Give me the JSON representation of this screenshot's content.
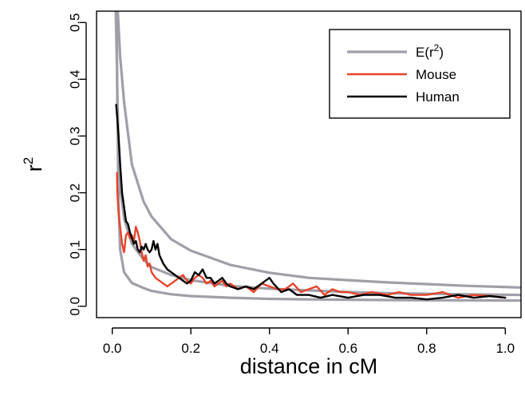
{
  "chart_data": {
    "type": "line",
    "xlabel": "distance in cM",
    "ylabel": "r",
    "ylabel_superscript": "2",
    "xlim": [
      -0.04,
      1.04
    ],
    "ylim": [
      -0.02,
      0.52
    ],
    "x_ticks": [
      "0.0",
      "0.2",
      "0.4",
      "0.6",
      "0.8",
      "1.0"
    ],
    "x_tick_values": [
      0.0,
      0.2,
      0.4,
      0.6,
      0.8,
      1.0
    ],
    "y_ticks": [
      "0.0",
      "0.1",
      "0.2",
      "0.3",
      "0.4",
      "0.5"
    ],
    "y_tick_values": [
      0.0,
      0.1,
      0.2,
      0.3,
      0.4,
      0.5
    ],
    "legend": {
      "placement": "top-right",
      "entries": [
        {
          "label": "E(r",
          "sup": "2",
          "suffix": ")",
          "color": "#a09fa8"
        },
        {
          "label": "Mouse",
          "sup": "",
          "suffix": "",
          "color": "#e8432a"
        },
        {
          "label": "Human",
          "sup": "",
          "suffix": "",
          "color": "#000000"
        }
      ]
    },
    "series": [
      {
        "name": "E(r2)",
        "color": "#a09fa8",
        "x": [
          0.014,
          0.02,
          0.03,
          0.05,
          0.08,
          0.1,
          0.15,
          0.2,
          0.3,
          0.4,
          0.5,
          0.6,
          0.7,
          0.8,
          0.9,
          1.04
        ],
        "y": [
          0.52,
          0.44,
          0.36,
          0.25,
          0.184,
          0.158,
          0.118,
          0.098,
          0.073,
          0.059,
          0.05,
          0.046,
          0.042,
          0.039,
          0.036,
          0.033
        ]
      },
      {
        "name": "E(r2)",
        "color": "#a09fa8",
        "x": [
          0.009,
          0.012,
          0.015,
          0.02,
          0.03,
          0.05,
          0.08,
          0.1,
          0.15,
          0.2,
          0.3,
          0.4,
          0.5,
          0.6,
          0.7,
          0.8,
          0.9,
          1.04
        ],
        "y": [
          0.52,
          0.42,
          0.3,
          0.21,
          0.155,
          0.11,
          0.082,
          0.069,
          0.055,
          0.046,
          0.036,
          0.031,
          0.028,
          0.025,
          0.023,
          0.022,
          0.021,
          0.02
        ]
      },
      {
        "name": "E(r2)",
        "color": "#a09fa8",
        "x": [
          0.011,
          0.013,
          0.016,
          0.02,
          0.03,
          0.05,
          0.08,
          0.1,
          0.15,
          0.2,
          0.3,
          0.4,
          0.5,
          0.6,
          0.7,
          0.8,
          0.9,
          1.04
        ],
        "y": [
          0.52,
          0.35,
          0.18,
          0.1,
          0.06,
          0.041,
          0.032,
          0.027,
          0.021,
          0.018,
          0.015,
          0.013,
          0.012,
          0.0115,
          0.011,
          0.0105,
          0.0105,
          0.01
        ]
      },
      {
        "name": "Mouse",
        "color": "#e8432a",
        "x": [
          0.012,
          0.013,
          0.016,
          0.02,
          0.025,
          0.03,
          0.035,
          0.04,
          0.045,
          0.05,
          0.055,
          0.06,
          0.065,
          0.07,
          0.075,
          0.08,
          0.085,
          0.09,
          0.095,
          0.1,
          0.11,
          0.12,
          0.13,
          0.14,
          0.15,
          0.16,
          0.17,
          0.18,
          0.19,
          0.2,
          0.21,
          0.22,
          0.23,
          0.24,
          0.25,
          0.26,
          0.27,
          0.28,
          0.29,
          0.3,
          0.32,
          0.34,
          0.36,
          0.38,
          0.4,
          0.42,
          0.44,
          0.46,
          0.48,
          0.5,
          0.52,
          0.54,
          0.56,
          0.58,
          0.6,
          0.63,
          0.66,
          0.7,
          0.73,
          0.76,
          0.8,
          0.84,
          0.88,
          0.92,
          0.96,
          1.0
        ],
        "y": [
          0.235,
          0.2,
          0.165,
          0.14,
          0.11,
          0.095,
          0.125,
          0.13,
          0.12,
          0.125,
          0.115,
          0.14,
          0.13,
          0.115,
          0.095,
          0.08,
          0.09,
          0.07,
          0.075,
          0.06,
          0.05,
          0.045,
          0.04,
          0.035,
          0.04,
          0.045,
          0.05,
          0.055,
          0.045,
          0.04,
          0.05,
          0.055,
          0.05,
          0.04,
          0.045,
          0.035,
          0.04,
          0.045,
          0.035,
          0.04,
          0.03,
          0.035,
          0.025,
          0.04,
          0.035,
          0.03,
          0.03,
          0.04,
          0.025,
          0.03,
          0.035,
          0.02,
          0.03,
          0.025,
          0.025,
          0.02,
          0.025,
          0.02,
          0.025,
          0.02,
          0.02,
          0.025,
          0.015,
          0.02,
          0.018,
          0.015
        ]
      },
      {
        "name": "Human",
        "color": "#000000",
        "x": [
          0.01,
          0.013,
          0.016,
          0.02,
          0.025,
          0.03,
          0.035,
          0.04,
          0.045,
          0.05,
          0.055,
          0.06,
          0.065,
          0.07,
          0.075,
          0.08,
          0.085,
          0.09,
          0.095,
          0.1,
          0.105,
          0.11,
          0.115,
          0.12,
          0.13,
          0.14,
          0.15,
          0.16,
          0.17,
          0.18,
          0.19,
          0.2,
          0.21,
          0.22,
          0.23,
          0.24,
          0.25,
          0.26,
          0.27,
          0.28,
          0.29,
          0.3,
          0.32,
          0.34,
          0.36,
          0.38,
          0.4,
          0.41,
          0.43,
          0.45,
          0.47,
          0.5,
          0.53,
          0.56,
          0.6,
          0.64,
          0.68,
          0.72,
          0.76,
          0.8,
          0.84,
          0.88,
          0.92,
          0.96,
          1.0
        ],
        "y": [
          0.355,
          0.33,
          0.3,
          0.25,
          0.2,
          0.175,
          0.15,
          0.145,
          0.13,
          0.12,
          0.11,
          0.115,
          0.1,
          0.095,
          0.105,
          0.1,
          0.11,
          0.1,
          0.095,
          0.1,
          0.115,
          0.1,
          0.11,
          0.09,
          0.075,
          0.065,
          0.06,
          0.055,
          0.05,
          0.045,
          0.04,
          0.045,
          0.06,
          0.055,
          0.065,
          0.05,
          0.05,
          0.04,
          0.045,
          0.05,
          0.04,
          0.035,
          0.03,
          0.035,
          0.03,
          0.04,
          0.05,
          0.04,
          0.025,
          0.03,
          0.02,
          0.02,
          0.015,
          0.02,
          0.015,
          0.02,
          0.02,
          0.015,
          0.015,
          0.012,
          0.015,
          0.02,
          0.015,
          0.018,
          0.015
        ]
      }
    ]
  }
}
